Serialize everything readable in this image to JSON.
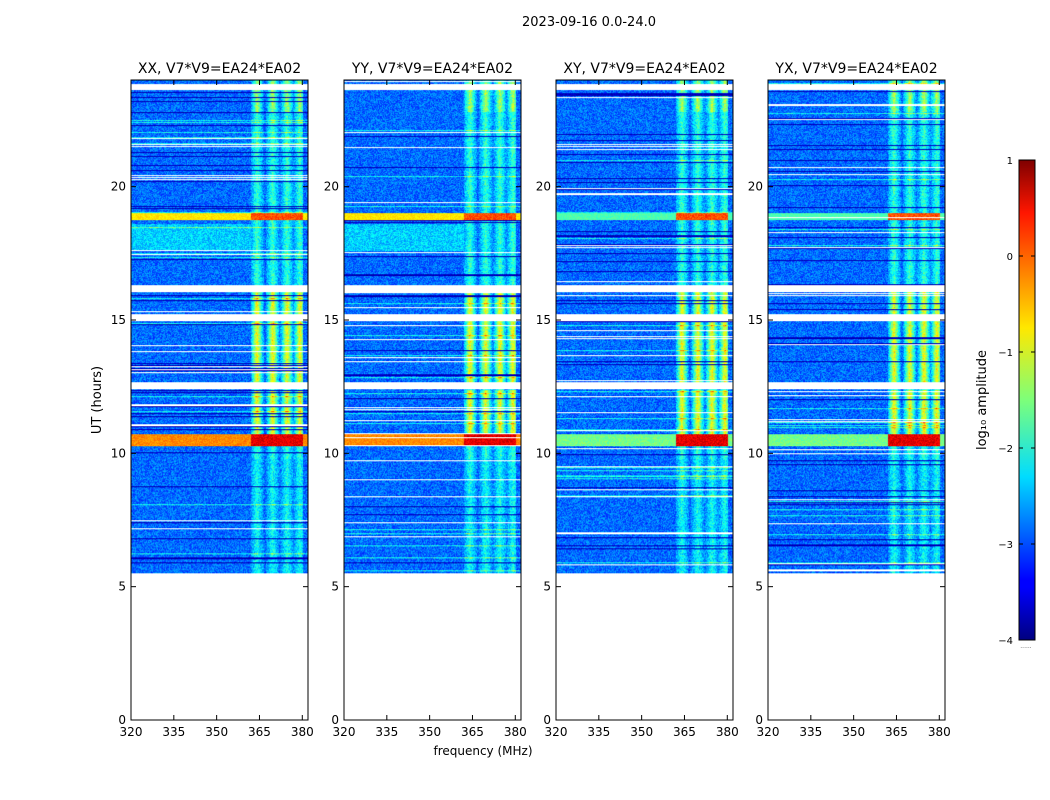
{
  "chart_data": {
    "type": "heatmap",
    "suptitle": "2023-09-16 0.0-24.0",
    "xlabel": "frequency (MHz)",
    "ylabel": "UT (hours)",
    "xlim": [
      320,
      382
    ],
    "ylim": [
      0,
      24
    ],
    "xticks": [
      320,
      335,
      350,
      365,
      380
    ],
    "yticks": [
      0,
      5,
      10,
      15,
      20
    ],
    "data_time_range_hours": [
      5.5,
      24.0
    ],
    "panels": [
      {
        "title": "XX, V7*V9=EA24*EA02",
        "pol": "XX"
      },
      {
        "title": "YY, V7*V9=EA24*EA02",
        "pol": "YY"
      },
      {
        "title": "XY, V7*V9=EA24*EA02",
        "pol": "XY"
      },
      {
        "title": "YX, V7*V9=EA24*EA02",
        "pol": "YX"
      }
    ],
    "strong_rfi_band_mhz": [
      362,
      380
    ],
    "strong_rfi_channels_mhz": [
      364,
      369.5,
      374.5,
      379
    ],
    "high_amplitude_rows_hours": [
      10.5,
      18.9
    ],
    "flagged_gap_hours": [
      12.55,
      15.1,
      16.2,
      23.75
    ],
    "colorbar": {
      "label": "log₁₀ amplitude",
      "min": -4,
      "max": 1,
      "ticks": [
        1,
        0,
        -1,
        -2,
        -3,
        -4
      ],
      "colormap": "jet",
      "under_label": "......"
    }
  }
}
